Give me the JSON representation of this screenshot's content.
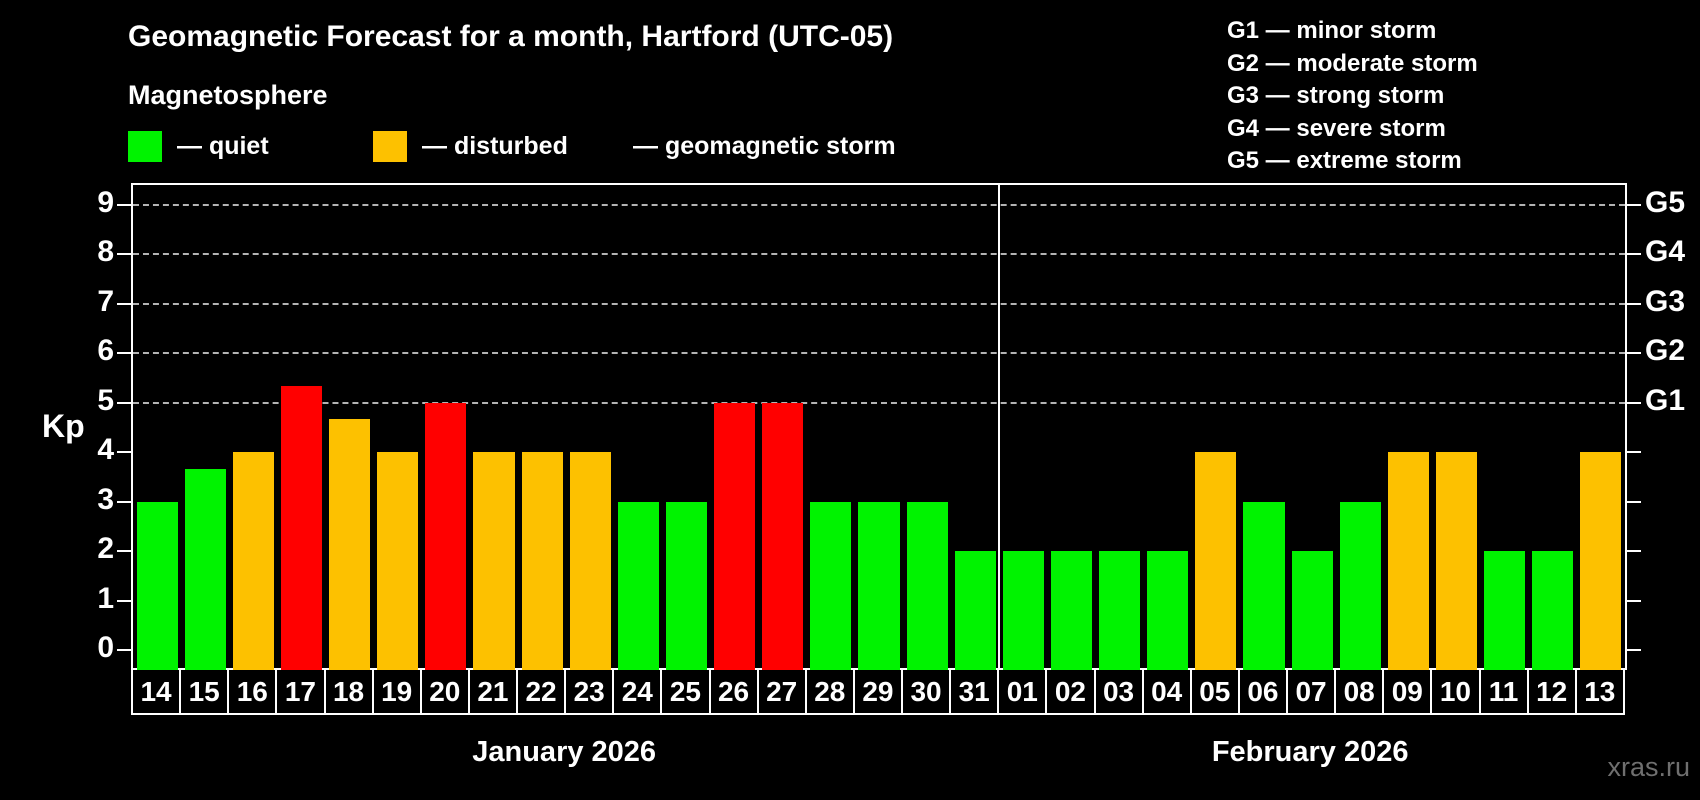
{
  "header": {
    "title": "Geomagnetic Forecast for a month, Hartford (UTC-05)",
    "subtitle": "Magnetosphere",
    "legend": [
      {
        "key": "quiet",
        "label": "— quiet"
      },
      {
        "key": "disturbed",
        "label": "— disturbed"
      },
      {
        "key": "storm",
        "label": "— geomagnetic storm"
      }
    ],
    "g_scale_legend": [
      "G1 — minor storm",
      "G2 — moderate storm",
      "G3 — strong storm",
      "G4 — severe storm",
      "G5 — extreme storm"
    ]
  },
  "chart_data": {
    "type": "bar",
    "ylabel": "Kp",
    "ylim": [
      -0.4,
      9.4
    ],
    "y_axis": {
      "ticks": [
        0,
        1,
        2,
        3,
        4,
        5,
        6,
        7,
        8,
        9
      ],
      "gridlines_at": [
        5,
        6,
        7,
        8,
        9
      ]
    },
    "right_axis": {
      "labels": [
        "G1",
        "G2",
        "G3",
        "G4",
        "G5"
      ],
      "at_kp": [
        5,
        6,
        7,
        8,
        9
      ]
    },
    "colors": {
      "quiet": "#00f300",
      "disturbed": "#fdc100",
      "storm": "#ff0000"
    },
    "months": [
      {
        "label": "January 2026",
        "days": [
          "14",
          "15",
          "16",
          "17",
          "18",
          "19",
          "20",
          "21",
          "22",
          "23",
          "24",
          "25",
          "26",
          "27",
          "28",
          "29",
          "30",
          "31"
        ],
        "values": [
          3,
          3.67,
          4,
          5.33,
          4.67,
          4,
          5,
          4,
          4,
          4,
          3,
          3,
          5,
          5,
          3,
          3,
          3,
          2
        ],
        "categories": [
          "quiet",
          "quiet",
          "disturbed",
          "storm",
          "disturbed",
          "disturbed",
          "storm",
          "disturbed",
          "disturbed",
          "disturbed",
          "quiet",
          "quiet",
          "storm",
          "storm",
          "quiet",
          "quiet",
          "quiet",
          "quiet"
        ]
      },
      {
        "label": "February 2026",
        "days": [
          "01",
          "02",
          "03",
          "04",
          "05",
          "06",
          "07",
          "08",
          "09",
          "10",
          "11",
          "12",
          "13"
        ],
        "values": [
          2,
          2,
          2,
          2,
          4,
          3,
          2,
          3,
          4,
          4,
          2,
          2,
          4
        ],
        "categories": [
          "quiet",
          "quiet",
          "quiet",
          "quiet",
          "disturbed",
          "quiet",
          "quiet",
          "quiet",
          "disturbed",
          "disturbed",
          "quiet",
          "quiet",
          "disturbed"
        ]
      }
    ]
  },
  "watermark": "xras.ru"
}
